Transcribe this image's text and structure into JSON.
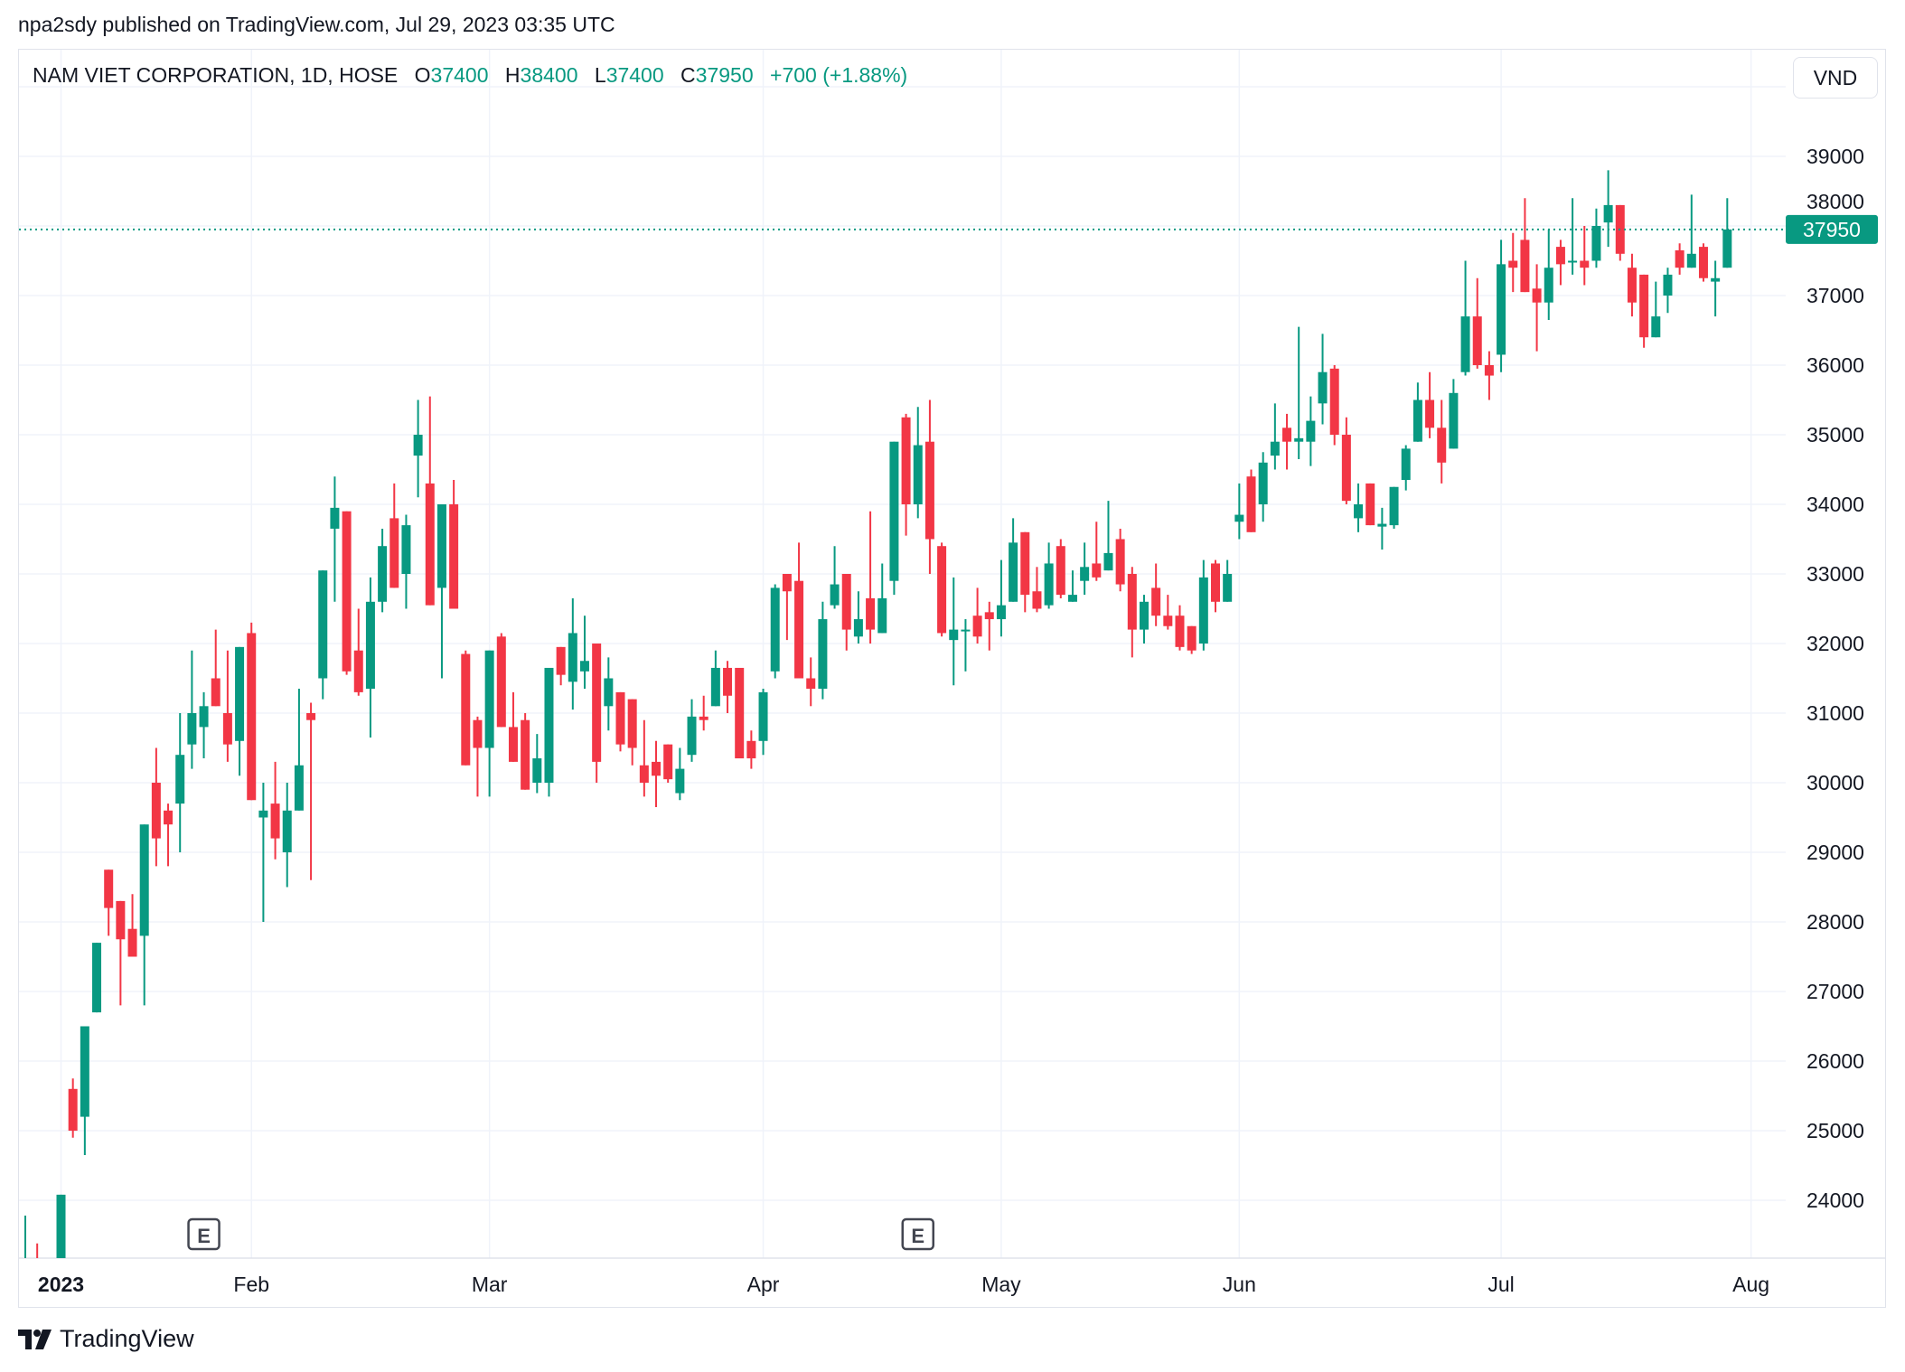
{
  "header": {
    "published": "npa2sdy published on TradingView.com, Jul 29, 2023 03:35 UTC"
  },
  "legend": {
    "symbol": "NAM VIET CORPORATION, 1D, HOSE",
    "open_label": "O",
    "open": "37400",
    "high_label": "H",
    "high": "38400",
    "low_label": "L",
    "low": "37400",
    "close_label": "C",
    "close": "37950",
    "change": "+700 (+1.88%)"
  },
  "currency_button": "VND",
  "footer": {
    "brand": "TradingView"
  },
  "colors": {
    "up": "#089981",
    "down": "#F23645",
    "grid": "#f0f3fa",
    "text": "#131722"
  },
  "chart_data": {
    "type": "candlestick",
    "y_ticks": [
      "24000",
      "25000",
      "26000",
      "27000",
      "28000",
      "29000",
      "30000",
      "31000",
      "32000",
      "33000",
      "34000",
      "35000",
      "36000",
      "37000",
      "38000",
      "39000"
    ],
    "ylim": [
      23170,
      40600
    ],
    "last_price": 37950,
    "last_price_label": "37950",
    "grid": true,
    "time_axis": [
      {
        "label": "2023",
        "date": "2023-01-03",
        "bold": true
      },
      {
        "label": "Feb",
        "date": "2023-02-01"
      },
      {
        "label": "Mar",
        "date": "2023-03-01"
      },
      {
        "label": "Apr",
        "date": "2023-04-03"
      },
      {
        "label": "May",
        "date": "2023-05-04"
      },
      {
        "label": "Jun",
        "date": "2023-06-01"
      },
      {
        "label": "Jul",
        "date": "2023-07-03"
      },
      {
        "label": "Aug",
        "date": "2023-08-01"
      }
    ],
    "events": [
      {
        "label": "E",
        "date": "2023-01-19"
      },
      {
        "label": "E",
        "date": "2023-04-20"
      }
    ],
    "columns": [
      "date",
      "open",
      "high",
      "low",
      "close"
    ],
    "candles": [
      [
        "2022-12-28",
        22900,
        23780,
        22800,
        23100
      ],
      [
        "2022-12-29",
        23100,
        23380,
        22900,
        23000
      ],
      [
        "2023-01-03",
        23000,
        24080,
        22900,
        24080
      ],
      [
        "2023-01-04",
        25600,
        25750,
        24900,
        25000
      ],
      [
        "2023-01-05",
        25200,
        26500,
        24650,
        26500
      ],
      [
        "2023-01-06",
        26700,
        27700,
        26700,
        27700
      ],
      [
        "2023-01-09",
        28750,
        28750,
        27800,
        28200
      ],
      [
        "2023-01-10",
        28300,
        28300,
        26800,
        27750
      ],
      [
        "2023-01-11",
        27900,
        28400,
        27500,
        27500
      ],
      [
        "2023-01-12",
        27800,
        29400,
        26800,
        29400
      ],
      [
        "2023-01-13",
        30000,
        30500,
        28800,
        29200
      ],
      [
        "2023-01-16",
        29600,
        29700,
        28800,
        29400
      ],
      [
        "2023-01-17",
        29700,
        31000,
        29000,
        30400
      ],
      [
        "2023-01-18",
        30550,
        31900,
        30200,
        31000
      ],
      [
        "2023-01-19",
        30800,
        31300,
        30350,
        31100
      ],
      [
        "2023-01-27",
        31500,
        32200,
        31100,
        31100
      ],
      [
        "2023-01-30",
        31000,
        31900,
        30300,
        30550
      ],
      [
        "2023-01-31",
        30600,
        31950,
        30100,
        31950
      ],
      [
        "2023-02-01",
        32150,
        32300,
        29750,
        29750
      ],
      [
        "2023-02-02",
        29500,
        30000,
        28000,
        29600
      ],
      [
        "2023-02-03",
        29700,
        30300,
        28900,
        29200
      ],
      [
        "2023-02-06",
        29000,
        30000,
        28500,
        29600
      ],
      [
        "2023-02-07",
        29600,
        31350,
        29600,
        30250
      ],
      [
        "2023-02-08",
        31000,
        31150,
        28600,
        30900
      ],
      [
        "2023-02-09",
        31500,
        33050,
        31200,
        33050
      ],
      [
        "2023-02-10",
        33650,
        34400,
        32600,
        33950
      ],
      [
        "2023-02-13",
        33900,
        33900,
        31550,
        31600
      ],
      [
        "2023-02-14",
        31900,
        32500,
        31250,
        31300
      ],
      [
        "2023-02-15",
        31350,
        32950,
        30650,
        32600
      ],
      [
        "2023-02-16",
        32600,
        33650,
        32450,
        33400
      ],
      [
        "2023-02-17",
        33800,
        34300,
        32800,
        32800
      ],
      [
        "2023-02-20",
        33000,
        33850,
        32500,
        33700
      ],
      [
        "2023-02-21",
        34700,
        35500,
        34100,
        35000
      ],
      [
        "2023-02-22",
        34300,
        35550,
        32550,
        32550
      ],
      [
        "2023-02-23",
        32800,
        34000,
        31500,
        34000
      ],
      [
        "2023-02-24",
        34000,
        34350,
        32500,
        32500
      ],
      [
        "2023-02-27",
        31850,
        31900,
        30250,
        30250
      ],
      [
        "2023-02-28",
        30900,
        30950,
        29800,
        30500
      ],
      [
        "2023-03-01",
        30500,
        31900,
        29800,
        31900
      ],
      [
        "2023-03-02",
        32100,
        32150,
        30800,
        30800
      ],
      [
        "2023-03-03",
        30800,
        31300,
        30300,
        30300
      ],
      [
        "2023-03-06",
        30900,
        31000,
        29900,
        29900
      ],
      [
        "2023-03-07",
        30000,
        30700,
        29850,
        30350
      ],
      [
        "2023-03-08",
        30000,
        31650,
        29800,
        31650
      ],
      [
        "2023-03-09",
        31950,
        31950,
        31400,
        31550
      ],
      [
        "2023-03-10",
        31450,
        32650,
        31050,
        32150
      ],
      [
        "2023-03-13",
        31600,
        32400,
        31350,
        31750
      ],
      [
        "2023-03-14",
        32000,
        32000,
        30000,
        30300
      ],
      [
        "2023-03-15",
        31100,
        31800,
        30750,
        31500
      ],
      [
        "2023-03-16",
        31300,
        31300,
        30450,
        30550
      ],
      [
        "2023-03-17",
        31200,
        31200,
        30250,
        30500
      ],
      [
        "2023-03-20",
        30250,
        30900,
        29800,
        30000
      ],
      [
        "2023-03-21",
        30300,
        30600,
        29650,
        30100
      ],
      [
        "2023-03-22",
        30550,
        30550,
        30000,
        30050
      ],
      [
        "2023-03-23",
        29850,
        30500,
        29750,
        30200
      ],
      [
        "2023-03-24",
        30400,
        31200,
        30300,
        30950
      ],
      [
        "2023-03-27",
        30950,
        31250,
        30750,
        30900
      ],
      [
        "2023-03-28",
        31100,
        31900,
        31100,
        31650
      ],
      [
        "2023-03-29",
        31650,
        31750,
        31000,
        31250
      ],
      [
        "2023-03-30",
        31650,
        31650,
        30350,
        30350
      ],
      [
        "2023-03-31",
        30600,
        30750,
        30200,
        30350
      ],
      [
        "2023-04-03",
        30600,
        31350,
        30400,
        31300
      ],
      [
        "2023-04-04",
        31600,
        32850,
        31500,
        32800
      ],
      [
        "2023-04-05",
        33000,
        33000,
        32050,
        32750
      ],
      [
        "2023-04-06",
        32900,
        33450,
        31500,
        31500
      ],
      [
        "2023-04-07",
        31500,
        31800,
        31100,
        31350
      ],
      [
        "2023-04-10",
        31350,
        32600,
        31200,
        32350
      ],
      [
        "2023-04-11",
        32550,
        33400,
        32500,
        32850
      ],
      [
        "2023-04-12",
        33000,
        33000,
        31900,
        32200
      ],
      [
        "2023-04-13",
        32100,
        32750,
        32000,
        32350
      ],
      [
        "2023-04-14",
        32650,
        33900,
        32000,
        32200
      ],
      [
        "2023-04-17",
        32150,
        33150,
        32150,
        32650
      ],
      [
        "2023-04-18",
        32900,
        34900,
        32700,
        34900
      ],
      [
        "2023-04-19",
        35250,
        35300,
        33550,
        34000
      ],
      [
        "2023-04-20",
        34000,
        35400,
        33800,
        34850
      ],
      [
        "2023-04-21",
        34900,
        35500,
        33000,
        33500
      ],
      [
        "2023-04-24",
        33400,
        33450,
        32100,
        32150
      ],
      [
        "2023-04-25",
        32050,
        32950,
        31400,
        32200
      ],
      [
        "2023-04-26",
        32180,
        32350,
        31600,
        32200
      ],
      [
        "2023-04-27",
        32400,
        32800,
        32000,
        32100
      ],
      [
        "2023-04-28",
        32450,
        32600,
        31900,
        32350
      ],
      [
        "2023-05-04",
        32350,
        33200,
        32100,
        32550
      ],
      [
        "2023-05-05",
        32600,
        33800,
        32600,
        33450
      ],
      [
        "2023-05-08",
        33600,
        33600,
        32450,
        32700
      ],
      [
        "2023-05-09",
        32750,
        33100,
        32450,
        32500
      ],
      [
        "2023-05-10",
        32550,
        33450,
        32500,
        33150
      ],
      [
        "2023-05-11",
        33400,
        33500,
        32650,
        32700
      ],
      [
        "2023-05-12",
        32600,
        33050,
        32600,
        32700
      ],
      [
        "2023-05-15",
        32900,
        33450,
        32700,
        33100
      ],
      [
        "2023-05-16",
        33150,
        33750,
        32900,
        32950
      ],
      [
        "2023-05-17",
        33050,
        34050,
        33050,
        33300
      ],
      [
        "2023-05-18",
        33500,
        33650,
        32750,
        32850
      ],
      [
        "2023-05-19",
        33000,
        33100,
        31800,
        32200
      ],
      [
        "2023-05-22",
        32200,
        32700,
        32000,
        32600
      ],
      [
        "2023-05-23",
        32800,
        33150,
        32250,
        32400
      ],
      [
        "2023-05-24",
        32400,
        32700,
        32200,
        32250
      ],
      [
        "2023-05-25",
        32400,
        32550,
        31900,
        31950
      ],
      [
        "2023-05-26",
        32250,
        32250,
        31850,
        31900
      ],
      [
        "2023-05-29",
        32000,
        33200,
        31900,
        32950
      ],
      [
        "2023-05-30",
        33150,
        33200,
        32450,
        32600
      ],
      [
        "2023-05-31",
        32600,
        33200,
        32600,
        33000
      ],
      [
        "2023-06-01",
        33750,
        34300,
        33500,
        33850
      ],
      [
        "2023-06-02",
        34400,
        34500,
        33600,
        33600
      ],
      [
        "2023-06-05",
        34000,
        34750,
        33750,
        34600
      ],
      [
        "2023-06-06",
        34700,
        35450,
        34500,
        34900
      ],
      [
        "2023-06-07",
        35100,
        35300,
        34500,
        34900
      ],
      [
        "2023-06-08",
        34900,
        36550,
        34650,
        34950
      ],
      [
        "2023-06-09",
        34900,
        35550,
        34550,
        35200
      ],
      [
        "2023-06-12",
        35450,
        36450,
        35150,
        35900
      ],
      [
        "2023-06-13",
        35950,
        36000,
        34850,
        35000
      ],
      [
        "2023-06-14",
        35000,
        35250,
        34000,
        34050
      ],
      [
        "2023-06-15",
        33800,
        34300,
        33600,
        34000
      ],
      [
        "2023-06-16",
        34300,
        34300,
        33700,
        33700
      ],
      [
        "2023-06-19",
        33680,
        33950,
        33350,
        33720
      ],
      [
        "2023-06-20",
        33700,
        34250,
        33650,
        34250
      ],
      [
        "2023-06-21",
        34350,
        34850,
        34200,
        34800
      ],
      [
        "2023-06-22",
        34900,
        35750,
        34900,
        35500
      ],
      [
        "2023-06-23",
        35500,
        35900,
        34950,
        35100
      ],
      [
        "2023-06-26",
        35100,
        35500,
        34300,
        34600
      ],
      [
        "2023-06-27",
        34800,
        35800,
        34800,
        35600
      ],
      [
        "2023-06-28",
        35900,
        37500,
        35850,
        36700
      ],
      [
        "2023-06-29",
        36700,
        37250,
        35950,
        36000
      ],
      [
        "2023-06-30",
        36000,
        36200,
        35500,
        35850
      ],
      [
        "2023-07-03",
        36150,
        37800,
        35900,
        37450
      ],
      [
        "2023-07-04",
        37500,
        37900,
        37050,
        37400
      ],
      [
        "2023-07-05",
        37800,
        38400,
        37050,
        37050
      ],
      [
        "2023-07-06",
        37100,
        37450,
        36200,
        36900
      ],
      [
        "2023-07-07",
        36900,
        37950,
        36650,
        37400
      ],
      [
        "2023-07-10",
        37700,
        37800,
        37150,
        37450
      ],
      [
        "2023-07-11",
        37480,
        38400,
        37300,
        37500
      ],
      [
        "2023-07-12",
        37500,
        38000,
        37150,
        37400
      ],
      [
        "2023-07-13",
        37500,
        38250,
        37400,
        38000
      ],
      [
        "2023-07-14",
        38050,
        38800,
        37700,
        38300
      ],
      [
        "2023-07-17",
        38300,
        38300,
        37500,
        37600
      ],
      [
        "2023-07-18",
        37400,
        37600,
        36700,
        36900
      ],
      [
        "2023-07-19",
        37300,
        37300,
        36250,
        36400
      ],
      [
        "2023-07-20",
        36400,
        37200,
        36400,
        36700
      ],
      [
        "2023-07-21",
        37000,
        37400,
        36750,
        37300
      ],
      [
        "2023-07-24",
        37650,
        37750,
        37300,
        37400
      ],
      [
        "2023-07-25",
        37400,
        38450,
        37400,
        37600
      ],
      [
        "2023-07-26",
        37700,
        37750,
        37200,
        37250
      ],
      [
        "2023-07-27",
        37200,
        37500,
        36700,
        37250
      ],
      [
        "2023-07-28",
        37400,
        38400,
        37400,
        37950
      ]
    ]
  }
}
